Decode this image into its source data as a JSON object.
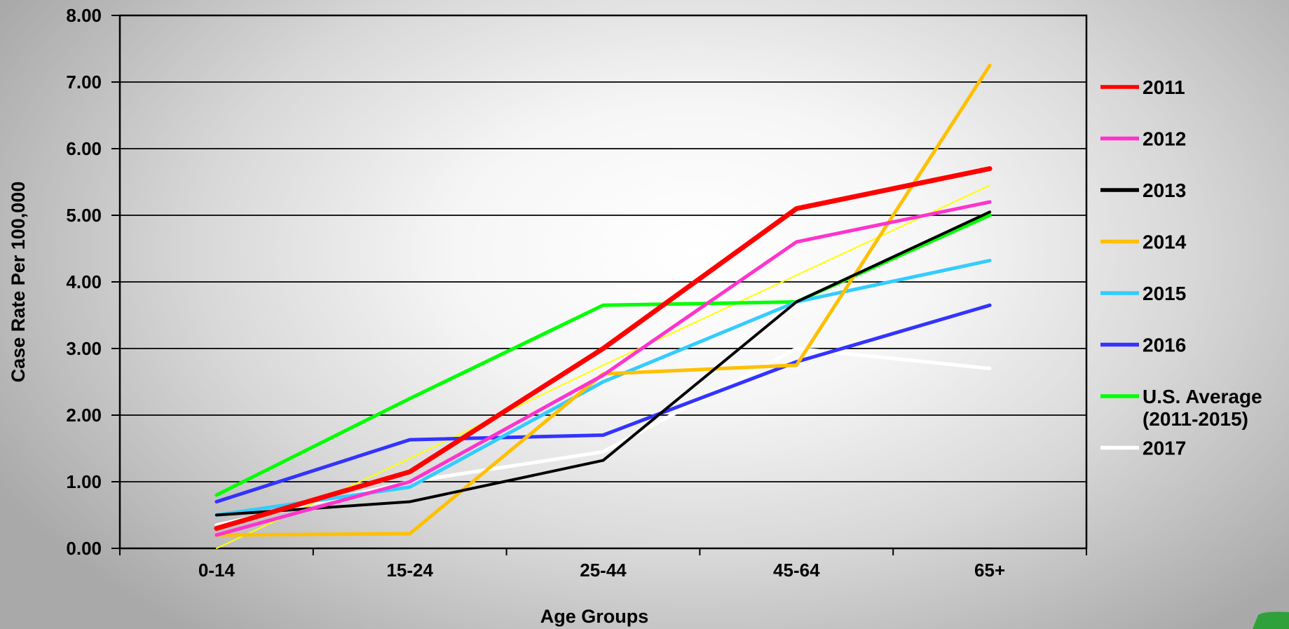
{
  "chart_data": {
    "type": "line",
    "title": "",
    "xlabel": "Age Groups",
    "ylabel": "Case Rate Per 100,000",
    "categories": [
      "0-14",
      "15-24",
      "25-44",
      "45-64",
      "65+"
    ],
    "y_ticks": [
      "0.00",
      "1.00",
      "2.00",
      "3.00",
      "4.00",
      "5.00",
      "6.00",
      "7.00",
      "8.00"
    ],
    "ylim": [
      0,
      8
    ],
    "grid": "horizontal",
    "legend_position": "right",
    "series": [
      {
        "name": "2011",
        "color": "#ff0000",
        "width": 7,
        "values": [
          0.3,
          1.15,
          3.0,
          5.1,
          5.7
        ]
      },
      {
        "name": "2012",
        "color": "#ff33cc",
        "width": 5,
        "values": [
          0.2,
          1.0,
          2.6,
          4.6,
          5.2
        ]
      },
      {
        "name": "2013",
        "color": "#000000",
        "width": 4,
        "values": [
          0.5,
          0.7,
          1.32,
          3.7,
          5.05
        ]
      },
      {
        "name": "2014",
        "color": "#ffc000",
        "width": 5,
        "values": [
          0.2,
          0.22,
          2.62,
          2.75,
          7.25
        ]
      },
      {
        "name": "2015",
        "color": "#33ccff",
        "width": 5,
        "values": [
          0.5,
          0.92,
          2.5,
          3.7,
          4.32
        ]
      },
      {
        "name": "2016",
        "color": "#3333ff",
        "width": 5,
        "values": [
          0.7,
          1.63,
          1.7,
          2.8,
          3.65
        ]
      },
      {
        "name": "U.S. Average (2011-2015)",
        "legend_lines": [
          "U.S. Average",
          "(2011-2015)"
        ],
        "color": "#00ff00",
        "width": 5,
        "values": [
          0.8,
          2.25,
          3.65,
          3.7,
          5.0
        ]
      },
      {
        "name": "2017",
        "color": "#ffffff",
        "width": 5,
        "values": [
          0.35,
          1.0,
          1.45,
          3.0,
          2.7
        ]
      },
      {
        "legend": false,
        "color": "#ffff00",
        "width": 2,
        "values": [
          0.0,
          1.35,
          2.75,
          4.1,
          5.45
        ]
      }
    ]
  }
}
